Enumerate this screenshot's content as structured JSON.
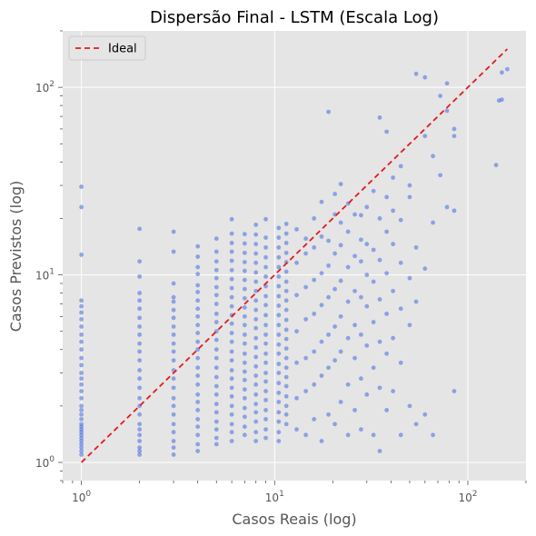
{
  "chart_data": {
    "type": "scatter",
    "title": "Dispersão Final - LSTM (Escala Log)",
    "xlabel": "Casos Reais (log)",
    "ylabel": "Casos Previstos (log)",
    "xscale": "log",
    "yscale": "log",
    "xlim": [
      0.8,
      200
    ],
    "ylim": [
      0.8,
      200
    ],
    "grid": true,
    "legend_position": "top-left",
    "xticks": [
      {
        "value": 1,
        "base": "10",
        "exp": "0"
      },
      {
        "value": 10,
        "base": "10",
        "exp": "1"
      },
      {
        "value": 100,
        "base": "10",
        "exp": "2"
      }
    ],
    "yticks": [
      {
        "value": 1,
        "base": "10",
        "exp": "0"
      },
      {
        "value": 10,
        "base": "10",
        "exp": "1"
      },
      {
        "value": 100,
        "base": "10",
        "exp": "2"
      }
    ],
    "series": [
      {
        "kind": "scatter",
        "color": "#4169e1",
        "columns": [
          {
            "x": 1,
            "y": [
              1.1,
              1.15,
              1.2,
              1.25,
              1.3,
              1.35,
              1.4,
              1.45,
              1.5,
              1.55,
              1.6,
              1.7,
              1.8,
              1.9,
              2.0,
              2.2,
              2.4,
              2.6,
              2.8,
              3.0,
              3.3,
              3.6,
              4.0,
              4.4,
              4.8,
              5.3,
              5.8,
              6.3,
              6.8,
              7.3,
              12.8,
              23,
              29.5
            ]
          },
          {
            "x": 2,
            "y": [
              1.1,
              1.15,
              1.2,
              1.3,
              1.4,
              1.5,
              1.6,
              1.8,
              2.0,
              2.2,
              2.5,
              2.8,
              3.1,
              3.5,
              3.9,
              4.3,
              4.8,
              5.3,
              5.9,
              6.6,
              7.3,
              8.0,
              9.8,
              11.8,
              17.6
            ]
          },
          {
            "x": 3,
            "y": [
              1.1,
              1.2,
              1.3,
              1.45,
              1.6,
              1.8,
              2.0,
              2.2,
              2.5,
              2.8,
              3.1,
              3.5,
              3.9,
              4.3,
              4.8,
              5.3,
              5.9,
              6.5,
              7.2,
              7.6,
              9.0,
              13.3,
              17.0
            ]
          },
          {
            "x": 4,
            "y": [
              1.15,
              1.25,
              1.4,
              1.55,
              1.7,
              1.9,
              2.1,
              2.3,
              2.6,
              2.9,
              3.2,
              3.6,
              4.0,
              4.4,
              4.9,
              5.4,
              6.0,
              6.6,
              7.3,
              8.1,
              8.8,
              10.1,
              11.0,
              12.5,
              14.2
            ]
          },
          {
            "x": 5,
            "y": [
              1.25,
              1.35,
              1.5,
              1.65,
              1.85,
              2.05,
              2.3,
              2.55,
              2.85,
              3.2,
              3.6,
              4.0,
              4.5,
              5.0,
              5.6,
              6.2,
              7.0,
              7.8,
              8.6,
              9.6,
              10.6,
              11.8,
              13.3,
              15.6
            ]
          },
          {
            "x": 6,
            "y": [
              1.3,
              1.45,
              1.6,
              1.8,
              2.0,
              2.25,
              2.5,
              2.8,
              3.1,
              3.5,
              3.9,
              4.4,
              4.9,
              5.5,
              6.1,
              6.8,
              7.6,
              8.5,
              9.5,
              10.6,
              11.9,
              13.3,
              14.8,
              16.6,
              19.8
            ]
          },
          {
            "x": 7,
            "y": [
              1.4,
              1.55,
              1.75,
              1.95,
              2.2,
              2.45,
              2.75,
              3.05,
              3.4,
              3.8,
              4.3,
              4.8,
              5.4,
              6.0,
              6.7,
              7.5,
              8.4,
              9.4,
              10.5,
              11.7,
              13.1,
              14.7,
              16.5
            ]
          },
          {
            "x": 8,
            "y": [
              1.3,
              1.45,
              1.65,
              1.85,
              2.05,
              2.3,
              2.6,
              2.9,
              3.25,
              3.65,
              4.1,
              4.6,
              5.2,
              5.8,
              6.5,
              7.3,
              8.2,
              9.2,
              10.3,
              11.6,
              13.0,
              14.6,
              16.4,
              18.5
            ]
          },
          {
            "x": 9,
            "y": [
              1.35,
              1.5,
              1.7,
              1.9,
              2.15,
              2.4,
              2.7,
              3.0,
              3.4,
              3.8,
              4.3,
              4.8,
              5.4,
              6.1,
              6.9,
              7.7,
              8.7,
              9.8,
              11.0,
              12.4,
              14.0,
              15.8,
              19.8
            ]
          },
          {
            "x": 10.5,
            "y": [
              1.3,
              1.45,
              1.65,
              1.85,
              2.1,
              2.35,
              2.65,
              3.0,
              3.35,
              3.8,
              4.25,
              4.8,
              5.4,
              6.1,
              6.85,
              7.7,
              8.7,
              9.8,
              11.0,
              12.4,
              14.0,
              15.8,
              17.8
            ]
          },
          {
            "x": 11.5,
            "y": [
              1.6,
              1.8,
              2.0,
              2.25,
              2.55,
              2.85,
              3.2,
              3.6,
              4.05,
              4.55,
              5.1,
              5.75,
              6.5,
              7.3,
              8.2,
              9.2,
              10.4,
              11.7,
              13.1,
              14.8,
              16.6,
              18.7
            ]
          }
        ],
        "scatter_points": [
          [
            13,
            1.5
          ],
          [
            13,
            2.2
          ],
          [
            13,
            3.4
          ],
          [
            13,
            5.0
          ],
          [
            13,
            7.8
          ],
          [
            13,
            11.6
          ],
          [
            13,
            17.5
          ],
          [
            14.5,
            1.4
          ],
          [
            14.5,
            2.4
          ],
          [
            14.5,
            3.6
          ],
          [
            14.5,
            5.8
          ],
          [
            14.5,
            8.6
          ],
          [
            14.5,
            13.0
          ],
          [
            14.5,
            15.6
          ],
          [
            16,
            1.7
          ],
          [
            16,
            2.6
          ],
          [
            16,
            3.9
          ],
          [
            16,
            6.2
          ],
          [
            16,
            9.4
          ],
          [
            16,
            14.0
          ],
          [
            16,
            20.0
          ],
          [
            17.5,
            1.3
          ],
          [
            17.5,
            2.9
          ],
          [
            17.5,
            4.4
          ],
          [
            17.5,
            6.9
          ],
          [
            17.5,
            10.2
          ],
          [
            17.5,
            16.0
          ],
          [
            17.5,
            24.5
          ],
          [
            19,
            1.8
          ],
          [
            19,
            3.2
          ],
          [
            19,
            4.8
          ],
          [
            19,
            7.6
          ],
          [
            19,
            11.2
          ],
          [
            19,
            15.2
          ],
          [
            19,
            74
          ],
          [
            20.5,
            1.6
          ],
          [
            20.5,
            3.5
          ],
          [
            20.5,
            5.3
          ],
          [
            20.5,
            8.4
          ],
          [
            20.5,
            13.0
          ],
          [
            20.5,
            21.0
          ],
          [
            20.5,
            27.0
          ],
          [
            22,
            2.1
          ],
          [
            22,
            3.9
          ],
          [
            22,
            6.0
          ],
          [
            22,
            9.3
          ],
          [
            22,
            14.4
          ],
          [
            22,
            19.0
          ],
          [
            22,
            30.5
          ],
          [
            24,
            1.4
          ],
          [
            24,
            2.6
          ],
          [
            24,
            4.6
          ],
          [
            24,
            7.2
          ],
          [
            24,
            11.0
          ],
          [
            24,
            17.0
          ],
          [
            24,
            24.0
          ],
          [
            26,
            1.9
          ],
          [
            26,
            3.6
          ],
          [
            26,
            5.4
          ],
          [
            26,
            8.2
          ],
          [
            26,
            12.6
          ],
          [
            26,
            21.0
          ],
          [
            28,
            1.5
          ],
          [
            28,
            2.8
          ],
          [
            28,
            4.8
          ],
          [
            28,
            7.6
          ],
          [
            28,
            11.8
          ],
          [
            28,
            15.4
          ],
          [
            28,
            20.8
          ],
          [
            30,
            2.3
          ],
          [
            30,
            4.2
          ],
          [
            30,
            6.8
          ],
          [
            30,
            10.0
          ],
          [
            30,
            14.6
          ],
          [
            30,
            23.0
          ],
          [
            32.5,
            1.4
          ],
          [
            32.5,
            3.2
          ],
          [
            32.5,
            5.6
          ],
          [
            32.5,
            9.2
          ],
          [
            32.5,
            13.6
          ],
          [
            32.5,
            28.0
          ],
          [
            35,
            1.15
          ],
          [
            35,
            2.5
          ],
          [
            35,
            4.4
          ],
          [
            35,
            7.4
          ],
          [
            35,
            12.0
          ],
          [
            35,
            20.0
          ],
          [
            35,
            69
          ],
          [
            38,
            1.9
          ],
          [
            38,
            3.8
          ],
          [
            38,
            6.2
          ],
          [
            38,
            10.2
          ],
          [
            38,
            17.0
          ],
          [
            38,
            26.0
          ],
          [
            38,
            58
          ],
          [
            41,
            2.4
          ],
          [
            41,
            4.6
          ],
          [
            41,
            8.2
          ],
          [
            41,
            14.6
          ],
          [
            41,
            22.0
          ],
          [
            41,
            33.0
          ],
          [
            45,
            1.4
          ],
          [
            45,
            3.4
          ],
          [
            45,
            6.6
          ],
          [
            45,
            11.6
          ],
          [
            45,
            19.6
          ],
          [
            45,
            38.0
          ],
          [
            50,
            2.0
          ],
          [
            50,
            5.4
          ],
          [
            50,
            9.6
          ],
          [
            50,
            26.0
          ],
          [
            50,
            30.0
          ],
          [
            54,
            1.6
          ],
          [
            54,
            7.2
          ],
          [
            54,
            14.0
          ],
          [
            54,
            118
          ],
          [
            60,
            1.8
          ],
          [
            60,
            10.8
          ],
          [
            60,
            55
          ],
          [
            60,
            113
          ],
          [
            66,
            1.4
          ],
          [
            66,
            19.0
          ],
          [
            66,
            43.0
          ],
          [
            72,
            34.0
          ],
          [
            72,
            90
          ],
          [
            78,
            23.0
          ],
          [
            78,
            75
          ],
          [
            78,
            105
          ],
          [
            85,
            22.0
          ],
          [
            85,
            55.0
          ],
          [
            85,
            60.0
          ],
          [
            85,
            2.4
          ],
          [
            140,
            38.5
          ],
          [
            145,
            85
          ],
          [
            150,
            86
          ],
          [
            150,
            120
          ],
          [
            160,
            125
          ]
        ]
      },
      {
        "kind": "line",
        "name": "Ideal",
        "color": "#e31a1c",
        "dash": "dashed",
        "x": [
          1,
          160
        ],
        "y": [
          1,
          160
        ]
      }
    ]
  }
}
